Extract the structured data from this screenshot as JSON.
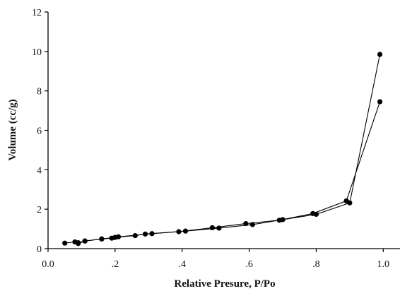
{
  "chart_data": {
    "type": "line",
    "title": "",
    "xlabel": "Relative Presure, P/Po",
    "ylabel": "Volume (cc/g)",
    "xlim": [
      0.0,
      1.05
    ],
    "ylim": [
      0,
      12
    ],
    "xticks": [
      {
        "value": 0.0,
        "label": "0.0"
      },
      {
        "value": 0.2,
        "label": ".2"
      },
      {
        "value": 0.4,
        "label": ".4"
      },
      {
        "value": 0.6,
        "label": ".6"
      },
      {
        "value": 0.8,
        "label": ".8"
      },
      {
        "value": 1.0,
        "label": "1.0"
      }
    ],
    "yticks": [
      {
        "value": 0,
        "label": "0"
      },
      {
        "value": 2,
        "label": "2"
      },
      {
        "value": 4,
        "label": "4"
      },
      {
        "value": 6,
        "label": "6"
      },
      {
        "value": 8,
        "label": "8"
      },
      {
        "value": 10,
        "label": "10"
      },
      {
        "value": 12,
        "label": "12"
      }
    ],
    "grid": false,
    "legend": "none",
    "marker_color": "#000000",
    "series": [
      {
        "x": [
          0.05,
          0.08,
          0.09,
          0.11,
          0.16,
          0.2,
          0.26,
          0.29,
          0.39,
          0.49,
          0.59,
          0.69,
          0.79,
          0.89,
          0.99
        ],
        "y": [
          0.28,
          0.34,
          0.3,
          0.39,
          0.49,
          0.57,
          0.66,
          0.74,
          0.86,
          1.06,
          1.27,
          1.44,
          1.78,
          2.42,
          7.45
        ]
      },
      {
        "x": [
          0.99,
          0.9,
          0.8,
          0.7,
          0.61,
          0.51,
          0.41,
          0.31,
          0.21,
          0.19,
          0.16,
          0.11,
          0.09
        ],
        "y": [
          9.85,
          2.32,
          1.74,
          1.47,
          1.22,
          1.04,
          0.89,
          0.76,
          0.6,
          0.53,
          0.49,
          0.38,
          0.26
        ]
      }
    ]
  }
}
